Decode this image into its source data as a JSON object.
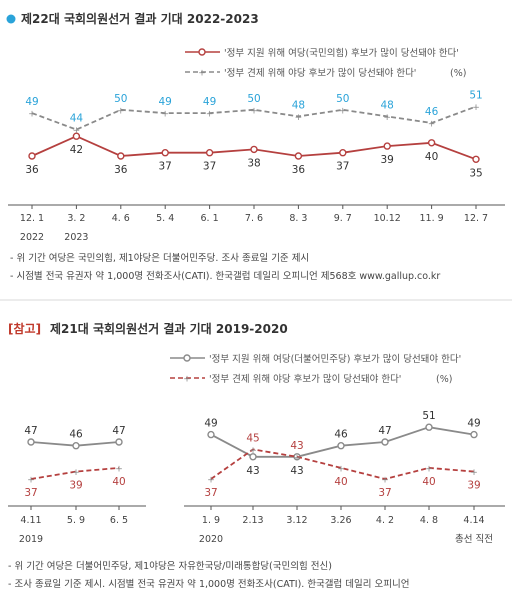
{
  "colors": {
    "red": "#b5403f",
    "gray": "#8a8a8a",
    "blue": "#2aa3d9",
    "ref_accent": "#c0392b"
  },
  "chart_data": [
    {
      "type": "line",
      "title": "제22대 국회의원선거 결과 기대 2022-2023",
      "title_marker": "circle-blue",
      "legend": {
        "series_red": "'정부 지원 위해 여당(국민의힘) 후보가 많이 당선돼야 한다'",
        "series_gray": "'정부 견제 위해 야당 후보가 많이 당선돼야 한다'",
        "unit": "(%)"
      },
      "x": [
        "12. 1",
        "3. 2",
        "4. 6",
        "5. 4",
        "6. 1",
        "7. 6",
        "8. 3",
        "9. 7",
        "10.12",
        "11. 9",
        "12. 7"
      ],
      "years": [
        {
          "label": "2022",
          "index": 0
        },
        {
          "label": "2023",
          "index": 1
        }
      ],
      "series": [
        {
          "values": [
            36,
            42,
            36,
            37,
            37,
            38,
            36,
            37,
            39,
            40,
            35
          ],
          "color": "#b5403f",
          "style": "solid"
        },
        {
          "values": [
            49,
            44,
            50,
            49,
            49,
            50,
            48,
            50,
            48,
            46,
            51
          ],
          "color": "#8a8a8a",
          "style": "dashed",
          "label_color": "#2aa3d9"
        }
      ],
      "notes": [
        "- 위 기간 여당은 국민의힘, 제1야당은 더불어민주당. 조사 종료일 기준 제시",
        "- 시점별 전국 유권자 약 1,000명 전화조사(CATI). 한국갤럽 데일리 오피니언 제568호 www.gallup.co.kr"
      ]
    },
    {
      "type": "line",
      "ref_tag": "[참고]",
      "title": "제21대 국회의원선거 결과 기대 2019-2020",
      "legend": {
        "series_gray": "'정부 지원 위해 여당(더불어민주당) 후보가 많이 당선돼야 한다'",
        "series_red": "'정부 견제 위해 야당 후보가 많이 당선돼야 한다'",
        "unit": "(%)"
      },
      "segments": [
        {
          "x": [
            "4.11",
            "5. 9",
            "6. 5"
          ],
          "year": "2019",
          "series": [
            {
              "values": [
                47,
                46,
                47
              ],
              "color": "#8a8a8a",
              "style": "solid"
            },
            {
              "values": [
                37,
                39,
                40
              ],
              "color": "#b5403f",
              "style": "dashed"
            }
          ]
        },
        {
          "x": [
            "1. 9",
            "2.13",
            "3.12",
            "3.26",
            "4. 2",
            "4. 8",
            "4.14"
          ],
          "year": "2020",
          "last_note": "총선 직전",
          "series": [
            {
              "values": [
                49,
                43,
                43,
                46,
                47,
                51,
                49
              ],
              "color": "#8a8a8a",
              "style": "solid"
            },
            {
              "values": [
                37,
                45,
                43,
                40,
                37,
                40,
                39
              ],
              "color": "#b5403f",
              "style": "dashed"
            }
          ]
        }
      ],
      "notes": [
        "- 위 기간 여당은 더불어민주당, 제1야당은 자유한국당/미래통합당(국민의힘 전신)",
        "- 조사 종료일 기준 제시. 시점별 전국 유권자 약 1,000명 전화조사(CATI). 한국갤럽 데일리 오피니언"
      ]
    }
  ]
}
